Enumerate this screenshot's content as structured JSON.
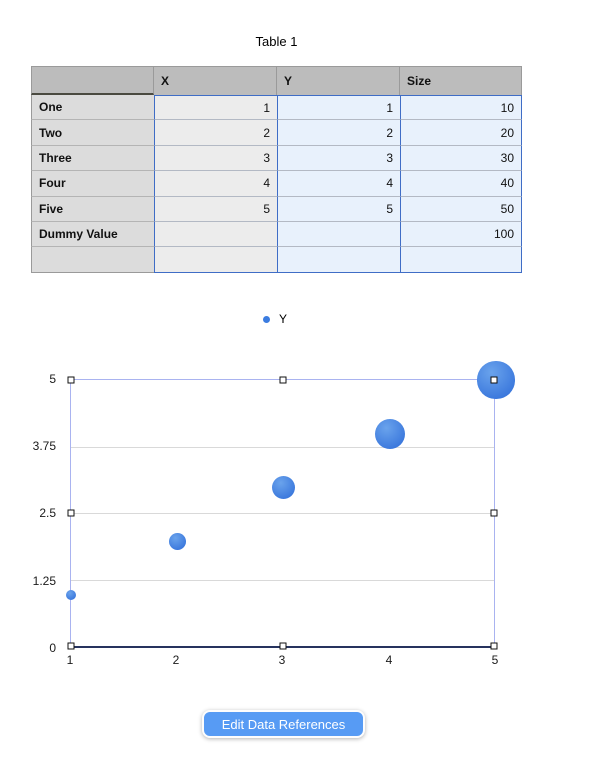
{
  "title": "Table 1",
  "table": {
    "columns": [
      "",
      "X",
      "Y",
      "Size"
    ],
    "rows": [
      {
        "label": "One",
        "x": "1",
        "y": "1",
        "size": "10"
      },
      {
        "label": "Two",
        "x": "2",
        "y": "2",
        "size": "20"
      },
      {
        "label": "Three",
        "x": "3",
        "y": "3",
        "size": "30"
      },
      {
        "label": "Four",
        "x": "4",
        "y": "4",
        "size": "40"
      },
      {
        "label": "Five",
        "x": "5",
        "y": "5",
        "size": "50"
      },
      {
        "label": "Dummy Value",
        "x": "",
        "y": "",
        "size": "100"
      },
      {
        "label": "",
        "x": "",
        "y": "",
        "size": ""
      }
    ],
    "selection_border_color": "#3f6dc6",
    "header_bg_color": "#bcbcbc",
    "selected_cell_bg_color": "#e8f1fc"
  },
  "legend": {
    "label": "Y",
    "marker_color": "#3b7ce0"
  },
  "chart_data": {
    "type": "scatter",
    "subtype": "bubble",
    "title": "",
    "xlabel": "",
    "ylabel": "",
    "series": [
      {
        "name": "Y",
        "color": "#3d7be0",
        "points": [
          {
            "x": 1,
            "y": 1,
            "size": 10
          },
          {
            "x": 2,
            "y": 2,
            "size": 20
          },
          {
            "x": 3,
            "y": 3,
            "size": 30
          },
          {
            "x": 4,
            "y": 4,
            "size": 40
          },
          {
            "x": 5,
            "y": 5,
            "size": 50
          }
        ]
      }
    ],
    "xlim": [
      1,
      5
    ],
    "ylim": [
      0,
      5
    ],
    "xticks": [
      "1",
      "2",
      "3",
      "4",
      "5"
    ],
    "yticks": [
      "5",
      "3.75",
      "2.5",
      "1.25",
      "0"
    ],
    "grid": true,
    "legend_position": "top-center",
    "selected": true
  },
  "button": {
    "label": "Edit Data References",
    "color": "#579bf4"
  }
}
